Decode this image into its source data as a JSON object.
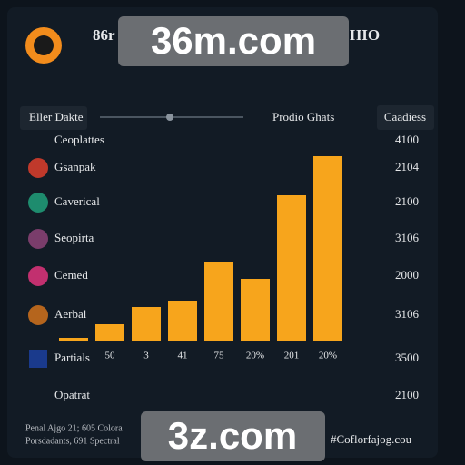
{
  "header": {
    "title": "86r",
    "suffix": "HIO"
  },
  "watermarks": [
    "36m.com",
    "3z.com"
  ],
  "controls": {
    "filter": "Eller Dakte",
    "chart_title": "Prodio Ghats",
    "button": "Caadiess"
  },
  "list": [
    {
      "label": "Ceoplattes",
      "value": "4100"
    },
    {
      "label": "Gsanpak",
      "value": "2104"
    },
    {
      "label": "Caverical",
      "value": "2100"
    },
    {
      "label": "Seopirta",
      "value": "3106"
    },
    {
      "label": "Cemed",
      "value": "2000"
    },
    {
      "label": "Aerbal",
      "value": "3106"
    },
    {
      "label": "Partials",
      "value": "3500"
    },
    {
      "label": "Opatrat",
      "value": "2100"
    }
  ],
  "bars": {
    "values": [
      3,
      18,
      37,
      44,
      87,
      68,
      160,
      203
    ],
    "color": "#f7a51c",
    "categories": [
      null,
      "50",
      "3",
      "41",
      "75",
      "20%",
      "201",
      "20%"
    ]
  },
  "footer": {
    "lines": [
      "Penal Ajgo 21; 605 Colora",
      "Porsdadants, 691 Spectral"
    ],
    "link": "#Coflorfajog.cou"
  }
}
